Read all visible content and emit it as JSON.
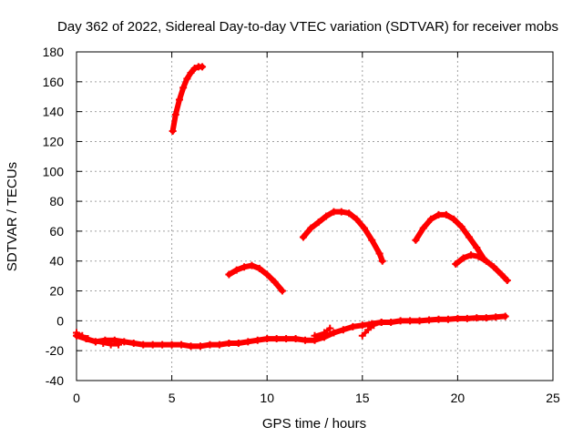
{
  "chart_data": {
    "type": "line",
    "title": "Day 362 of 2022, Sidereal Day-to-day VTEC variation (SDTVAR) for receiver mobs",
    "xlabel": "GPS time / hours",
    "ylabel": "SDTVAR / TECUs",
    "xlim": [
      0,
      25
    ],
    "ylim": [
      -40,
      180
    ],
    "xticks": [
      "0",
      "5",
      "10",
      "15",
      "20",
      "25"
    ],
    "xtick_values": [
      0,
      5,
      10,
      15,
      20,
      25
    ],
    "yticks": [
      "-40",
      "-20",
      "0",
      "20",
      "40",
      "60",
      "80",
      "100",
      "120",
      "140",
      "160",
      "180"
    ],
    "ytick_values": [
      -40,
      -20,
      0,
      20,
      40,
      60,
      80,
      100,
      120,
      140,
      160,
      180
    ],
    "grid": true,
    "color": "#ff0000",
    "marker": "plus",
    "series": [
      {
        "name": "arc-baseline",
        "x": [
          0,
          0.5,
          1,
          1.5,
          2,
          2.5,
          3,
          3.5,
          4,
          4.5,
          5,
          5.5,
          6,
          6.5,
          7,
          7.5,
          8,
          8.5,
          9,
          9.5,
          10,
          10.5,
          11,
          11.5,
          12,
          12.5,
          13,
          13.5,
          14,
          14.5,
          15,
          15.5,
          16,
          16.5,
          17,
          17.5,
          18,
          18.5,
          19,
          19.5,
          20,
          20.5,
          21,
          21.5,
          22,
          22.5
        ],
        "y": [
          -10,
          -12,
          -14,
          -13,
          -13,
          -14,
          -15,
          -16,
          -16,
          -16,
          -16,
          -16,
          -17,
          -17,
          -16,
          -16,
          -15,
          -15,
          -14,
          -13,
          -12,
          -12,
          -12,
          -12,
          -13,
          -13,
          -11,
          -8,
          -6,
          -4,
          -3,
          -2,
          -1,
          -1,
          0,
          0,
          0,
          0.5,
          1,
          1,
          1.5,
          1.5,
          2,
          2,
          2.5,
          3
        ],
        "width": 6
      },
      {
        "name": "arc-low-start",
        "x": [
          0,
          0.3,
          0.6,
          1,
          1.4,
          1.8,
          2.2
        ],
        "y": [
          -8,
          -10,
          -12,
          -14,
          -15,
          -16,
          -16
        ],
        "width": 4
      },
      {
        "name": "arc-mid-overlap",
        "x": [
          12.5,
          13,
          13.3
        ],
        "y": [
          -10,
          -8,
          -5
        ],
        "width": 4
      },
      {
        "name": "arc-late-start",
        "x": [
          15,
          15.3,
          15.6,
          16
        ],
        "y": [
          -10,
          -6,
          -3,
          -1
        ],
        "width": 4
      },
      {
        "name": "arc-high-peak",
        "x": [
          5.05,
          5.2,
          5.4,
          5.6,
          5.8,
          6.0,
          6.2,
          6.4,
          6.6
        ],
        "y": [
          127,
          138,
          148,
          156,
          162,
          166,
          169,
          170,
          170
        ],
        "width": 6
      },
      {
        "name": "arc-morning",
        "x": [
          8,
          8.4,
          8.8,
          9.2,
          9.6,
          10.0,
          10.4,
          10.8
        ],
        "y": [
          31,
          34,
          36,
          37,
          35,
          31,
          26,
          20
        ],
        "width": 6
      },
      {
        "name": "arc-midday",
        "x": [
          11.9,
          12.3,
          12.7,
          13.1,
          13.5,
          13.9,
          14.3,
          14.7,
          15.1,
          15.5,
          15.9,
          16.05
        ],
        "y": [
          56,
          62,
          66,
          70,
          73,
          73,
          72,
          68,
          62,
          54,
          45,
          40
        ],
        "width": 6
      },
      {
        "name": "arc-evening",
        "x": [
          17.8,
          18.2,
          18.6,
          19.0,
          19.4,
          19.8,
          20.2,
          20.6,
          21.0,
          21.4
        ],
        "y": [
          54,
          62,
          68,
          71,
          71,
          68,
          63,
          56,
          49,
          41
        ],
        "width": 6
      },
      {
        "name": "arc-late",
        "x": [
          19.9,
          20.3,
          20.7,
          21.1,
          21.5,
          21.9,
          22.3,
          22.6
        ],
        "y": [
          38,
          42,
          44,
          43,
          40,
          36,
          31,
          27
        ],
        "width": 6
      }
    ]
  }
}
